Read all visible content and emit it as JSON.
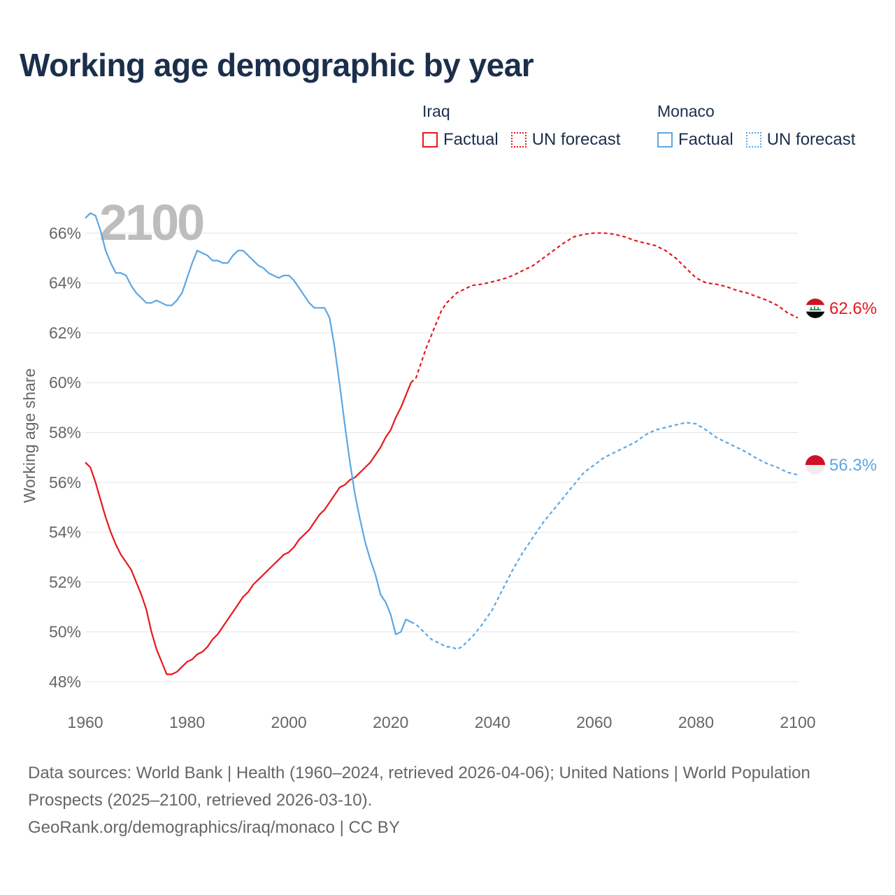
{
  "title": "Working age demographic by year",
  "legend": [
    {
      "country": "Iraq",
      "color": "#e8171c",
      "factual_label": "Factual",
      "forecast_label": "UN forecast"
    },
    {
      "country": "Monaco",
      "color": "#5ba7e5",
      "factual_label": "Factual",
      "forecast_label": "UN forecast"
    }
  ],
  "year_watermark": "2100",
  "footer": {
    "sources": "Data sources: World Bank | Health (1960–2024, retrieved 2026-04-06); United Nations | World Population Prospects (2025–2100, retrieved 2026-03-10).",
    "credit": "GeoRank.org/demographics/iraq/monaco | CC BY"
  },
  "chart_data": {
    "type": "line",
    "title": "Working age demographic by year",
    "xlabel": "",
    "ylabel": "Working age share",
    "xlim": [
      1960,
      2100
    ],
    "ylim": [
      47.3,
      67.3
    ],
    "x_ticks": [
      1960,
      1980,
      2000,
      2020,
      2040,
      2060,
      2080,
      2100
    ],
    "y_ticks": [
      48,
      50,
      52,
      54,
      56,
      58,
      60,
      62,
      64,
      66
    ],
    "y_tick_format": "{v}%",
    "grid": true,
    "factual_until": 2024,
    "series": [
      {
        "name": "Iraq",
        "color": "#e8171c",
        "end_label": "62.6%",
        "points": [
          [
            1960,
            56.8
          ],
          [
            1961,
            56.6
          ],
          [
            1962,
            56.0
          ],
          [
            1963,
            55.3
          ],
          [
            1964,
            54.6
          ],
          [
            1965,
            54.0
          ],
          [
            1966,
            53.5
          ],
          [
            1967,
            53.1
          ],
          [
            1968,
            52.8
          ],
          [
            1969,
            52.5
          ],
          [
            1970,
            52.0
          ],
          [
            1971,
            51.5
          ],
          [
            1972,
            50.9
          ],
          [
            1973,
            50.0
          ],
          [
            1974,
            49.3
          ],
          [
            1975,
            48.8
          ],
          [
            1976,
            48.3
          ],
          [
            1977,
            48.3
          ],
          [
            1978,
            48.4
          ],
          [
            1979,
            48.6
          ],
          [
            1980,
            48.8
          ],
          [
            1981,
            48.9
          ],
          [
            1982,
            49.1
          ],
          [
            1983,
            49.2
          ],
          [
            1984,
            49.4
          ],
          [
            1985,
            49.7
          ],
          [
            1986,
            49.9
          ],
          [
            1987,
            50.2
          ],
          [
            1988,
            50.5
          ],
          [
            1989,
            50.8
          ],
          [
            1990,
            51.1
          ],
          [
            1991,
            51.4
          ],
          [
            1992,
            51.6
          ],
          [
            1993,
            51.9
          ],
          [
            1994,
            52.1
          ],
          [
            1995,
            52.3
          ],
          [
            1996,
            52.5
          ],
          [
            1997,
            52.7
          ],
          [
            1998,
            52.9
          ],
          [
            1999,
            53.1
          ],
          [
            2000,
            53.2
          ],
          [
            2001,
            53.4
          ],
          [
            2002,
            53.7
          ],
          [
            2003,
            53.9
          ],
          [
            2004,
            54.1
          ],
          [
            2005,
            54.4
          ],
          [
            2006,
            54.7
          ],
          [
            2007,
            54.9
          ],
          [
            2008,
            55.2
          ],
          [
            2009,
            55.5
          ],
          [
            2010,
            55.8
          ],
          [
            2011,
            55.9
          ],
          [
            2012,
            56.1
          ],
          [
            2013,
            56.2
          ],
          [
            2014,
            56.4
          ],
          [
            2015,
            56.6
          ],
          [
            2016,
            56.8
          ],
          [
            2017,
            57.1
          ],
          [
            2018,
            57.4
          ],
          [
            2019,
            57.8
          ],
          [
            2020,
            58.1
          ],
          [
            2021,
            58.6
          ],
          [
            2022,
            59.0
          ],
          [
            2023,
            59.5
          ],
          [
            2024,
            60.0
          ],
          [
            2025,
            60.2
          ],
          [
            2026,
            60.8
          ],
          [
            2027,
            61.4
          ],
          [
            2028,
            61.9
          ],
          [
            2029,
            62.4
          ],
          [
            2030,
            62.9
          ],
          [
            2031,
            63.2
          ],
          [
            2032,
            63.4
          ],
          [
            2033,
            63.6
          ],
          [
            2034,
            63.7
          ],
          [
            2035,
            63.8
          ],
          [
            2036,
            63.9
          ],
          [
            2038,
            63.95
          ],
          [
            2040,
            64.05
          ],
          [
            2042,
            64.15
          ],
          [
            2044,
            64.3
          ],
          [
            2046,
            64.5
          ],
          [
            2048,
            64.7
          ],
          [
            2050,
            65.0
          ],
          [
            2052,
            65.3
          ],
          [
            2054,
            65.6
          ],
          [
            2056,
            65.85
          ],
          [
            2058,
            65.95
          ],
          [
            2060,
            66.0
          ],
          [
            2062,
            66.0
          ],
          [
            2064,
            65.95
          ],
          [
            2066,
            65.85
          ],
          [
            2068,
            65.7
          ],
          [
            2070,
            65.6
          ],
          [
            2072,
            65.5
          ],
          [
            2074,
            65.3
          ],
          [
            2076,
            65.0
          ],
          [
            2078,
            64.6
          ],
          [
            2080,
            64.2
          ],
          [
            2082,
            64.0
          ],
          [
            2084,
            63.95
          ],
          [
            2086,
            63.85
          ],
          [
            2088,
            63.7
          ],
          [
            2090,
            63.6
          ],
          [
            2092,
            63.45
          ],
          [
            2094,
            63.3
          ],
          [
            2096,
            63.1
          ],
          [
            2098,
            62.8
          ],
          [
            2100,
            62.6
          ]
        ]
      },
      {
        "name": "Monaco",
        "color": "#5ba7e5",
        "end_label": "56.3%",
        "points": [
          [
            1960,
            66.6
          ],
          [
            1961,
            66.8
          ],
          [
            1962,
            66.7
          ],
          [
            1963,
            66.1
          ],
          [
            1964,
            65.3
          ],
          [
            1965,
            64.8
          ],
          [
            1966,
            64.4
          ],
          [
            1967,
            64.4
          ],
          [
            1968,
            64.3
          ],
          [
            1969,
            63.9
          ],
          [
            1970,
            63.6
          ],
          [
            1971,
            63.4
          ],
          [
            1972,
            63.2
          ],
          [
            1973,
            63.2
          ],
          [
            1974,
            63.3
          ],
          [
            1975,
            63.2
          ],
          [
            1976,
            63.1
          ],
          [
            1977,
            63.1
          ],
          [
            1978,
            63.3
          ],
          [
            1979,
            63.6
          ],
          [
            1980,
            64.2
          ],
          [
            1981,
            64.8
          ],
          [
            1982,
            65.3
          ],
          [
            1983,
            65.2
          ],
          [
            1984,
            65.1
          ],
          [
            1985,
            64.9
          ],
          [
            1986,
            64.9
          ],
          [
            1987,
            64.8
          ],
          [
            1988,
            64.8
          ],
          [
            1989,
            65.1
          ],
          [
            1990,
            65.3
          ],
          [
            1991,
            65.3
          ],
          [
            1992,
            65.1
          ],
          [
            1993,
            64.9
          ],
          [
            1994,
            64.7
          ],
          [
            1995,
            64.6
          ],
          [
            1996,
            64.4
          ],
          [
            1997,
            64.3
          ],
          [
            1998,
            64.2
          ],
          [
            1999,
            64.3
          ],
          [
            2000,
            64.3
          ],
          [
            2001,
            64.1
          ],
          [
            2002,
            63.8
          ],
          [
            2003,
            63.5
          ],
          [
            2004,
            63.2
          ],
          [
            2005,
            63.0
          ],
          [
            2006,
            63.0
          ],
          [
            2007,
            63.0
          ],
          [
            2008,
            62.6
          ],
          [
            2009,
            61.4
          ],
          [
            2010,
            59.9
          ],
          [
            2011,
            58.3
          ],
          [
            2012,
            56.8
          ],
          [
            2013,
            55.5
          ],
          [
            2014,
            54.5
          ],
          [
            2015,
            53.6
          ],
          [
            2016,
            52.9
          ],
          [
            2017,
            52.3
          ],
          [
            2018,
            51.5
          ],
          [
            2019,
            51.2
          ],
          [
            2020,
            50.7
          ],
          [
            2021,
            49.9
          ],
          [
            2022,
            50.0
          ],
          [
            2023,
            50.5
          ],
          [
            2024,
            50.4
          ],
          [
            2025,
            50.3
          ],
          [
            2026,
            50.1
          ],
          [
            2027,
            49.9
          ],
          [
            2028,
            49.7
          ],
          [
            2029,
            49.6
          ],
          [
            2030,
            49.5
          ],
          [
            2031,
            49.4
          ],
          [
            2032,
            49.4
          ],
          [
            2033,
            49.3
          ],
          [
            2034,
            49.4
          ],
          [
            2035,
            49.6
          ],
          [
            2036,
            49.8
          ],
          [
            2038,
            50.3
          ],
          [
            2040,
            50.9
          ],
          [
            2042,
            51.7
          ],
          [
            2044,
            52.5
          ],
          [
            2046,
            53.2
          ],
          [
            2048,
            53.8
          ],
          [
            2050,
            54.4
          ],
          [
            2052,
            54.9
          ],
          [
            2054,
            55.4
          ],
          [
            2056,
            55.9
          ],
          [
            2058,
            56.4
          ],
          [
            2060,
            56.7
          ],
          [
            2062,
            57.0
          ],
          [
            2064,
            57.2
          ],
          [
            2066,
            57.4
          ],
          [
            2068,
            57.6
          ],
          [
            2070,
            57.9
          ],
          [
            2072,
            58.1
          ],
          [
            2074,
            58.2
          ],
          [
            2076,
            58.3
          ],
          [
            2078,
            58.4
          ],
          [
            2080,
            58.35
          ],
          [
            2082,
            58.1
          ],
          [
            2084,
            57.8
          ],
          [
            2086,
            57.6
          ],
          [
            2088,
            57.4
          ],
          [
            2090,
            57.2
          ],
          [
            2092,
            56.95
          ],
          [
            2094,
            56.75
          ],
          [
            2096,
            56.6
          ],
          [
            2098,
            56.4
          ],
          [
            2100,
            56.3
          ]
        ]
      }
    ]
  }
}
